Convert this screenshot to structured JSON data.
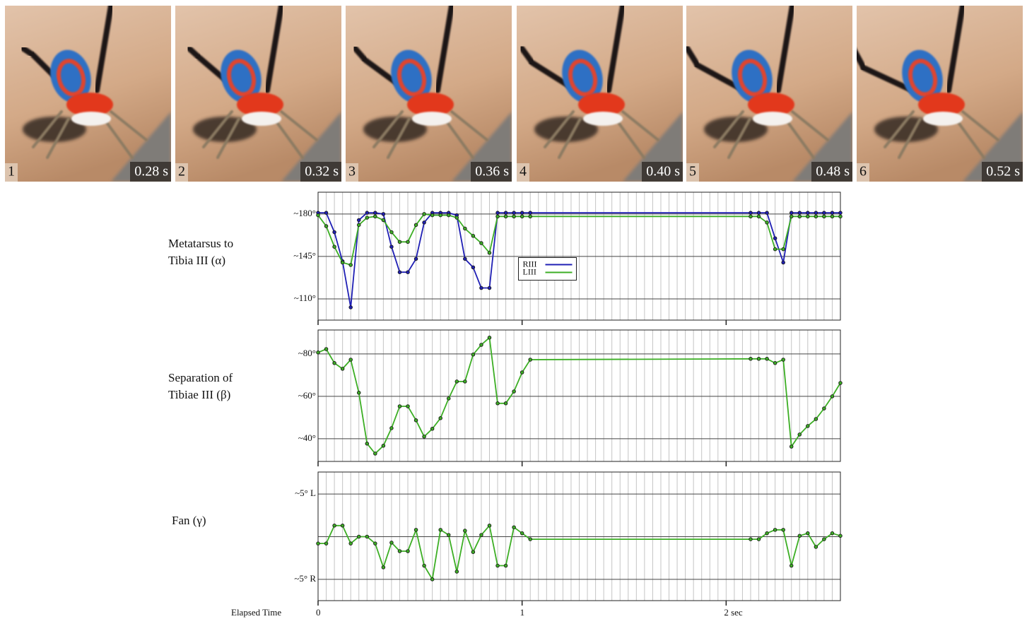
{
  "frames": [
    {
      "number": "1",
      "time": "0.28 s"
    },
    {
      "number": "2",
      "time": "0.32 s"
    },
    {
      "number": "3",
      "time": "0.36 s"
    },
    {
      "number": "4",
      "time": "0.40 s"
    },
    {
      "number": "5",
      "time": "0.48 s"
    },
    {
      "number": "6",
      "time": "0.52 s"
    }
  ],
  "chart_data": [
    {
      "type": "line",
      "title": [
        "Metatarsus to",
        "Tibia III (α)"
      ],
      "x": [
        0,
        0.04,
        0.08,
        0.12,
        0.16,
        0.2,
        0.24,
        0.28,
        0.32,
        0.36,
        0.4,
        0.44,
        0.48,
        0.52,
        0.56,
        0.6,
        0.64,
        0.68,
        0.72,
        0.76,
        0.8,
        0.84,
        0.88,
        0.92,
        0.96,
        1,
        1.04,
        2.12,
        2.16,
        2.2,
        2.24,
        2.28,
        2.32,
        2.36,
        2.4,
        2.44,
        2.48,
        2.52,
        2.56
      ],
      "xlim": [
        0,
        2.56
      ],
      "ylim": [
        92.5,
        198
      ],
      "yticks": [
        {
          "value": 180,
          "label": "~180°"
        },
        {
          "value": 145,
          "label": "~145°"
        },
        {
          "value": 110,
          "label": "~110°"
        }
      ],
      "minor_grid_step": 0.04,
      "legend": "center",
      "series": [
        {
          "name": "RIII",
          "color": "#1f1fb4",
          "values": [
            181,
            181,
            165,
            141,
            103,
            175,
            181,
            181,
            180,
            153,
            132,
            132,
            143,
            173,
            181,
            181,
            181,
            179,
            143,
            136,
            119,
            119,
            181,
            181,
            181,
            181,
            181,
            181,
            181,
            181,
            160,
            140,
            181,
            181,
            181,
            181,
            181,
            181,
            181
          ]
        },
        {
          "name": "LIII",
          "color": "#3cae24",
          "values": [
            179,
            170,
            153,
            140,
            138,
            171,
            177,
            178,
            175,
            165,
            157,
            157,
            171,
            180,
            179,
            179,
            179,
            177,
            168,
            162,
            156,
            148,
            178,
            178,
            178,
            178,
            178,
            178,
            178,
            173,
            151,
            151,
            178,
            178,
            178,
            178,
            178,
            178,
            178
          ]
        }
      ]
    },
    {
      "type": "line",
      "title": [
        "Separation of",
        "Tibiae III  (β)"
      ],
      "x": [
        0,
        0.04,
        0.08,
        0.12,
        0.16,
        0.2,
        0.24,
        0.28,
        0.32,
        0.36,
        0.4,
        0.44,
        0.48,
        0.52,
        0.56,
        0.6,
        0.64,
        0.68,
        0.72,
        0.76,
        0.8,
        0.84,
        0.88,
        0.92,
        0.96,
        1,
        1.04,
        2.12,
        2.16,
        2.2,
        2.24,
        2.28,
        2.32,
        2.36,
        2.4,
        2.44,
        2.48,
        2.52,
        2.56
      ],
      "xlim": [
        0,
        2.56
      ],
      "ylim": [
        29.3,
        91.3
      ],
      "yticks": [
        {
          "value": 80,
          "label": "~80°"
        },
        {
          "value": 60,
          "label": "~60°"
        },
        {
          "value": 40,
          "label": "~40°"
        }
      ],
      "minor_grid_step": 0.04,
      "series": [
        {
          "color": "#3cae24",
          "values": [
            80.7,
            82.3,
            75.7,
            73,
            77.3,
            61.7,
            37.7,
            33,
            36.7,
            45,
            55.3,
            55.3,
            48.7,
            41,
            44.7,
            49.7,
            59,
            67,
            67,
            79.7,
            84.3,
            87.7,
            56.7,
            56.7,
            62.3,
            71.3,
            77.3,
            77.7,
            77.7,
            77.7,
            75.7,
            77.3,
            36.3,
            42,
            46,
            49.3,
            54.3,
            60,
            66.3
          ]
        }
      ]
    },
    {
      "type": "line",
      "title": [
        "Fan (γ)"
      ],
      "x": [
        0,
        0.04,
        0.08,
        0.12,
        0.16,
        0.2,
        0.24,
        0.28,
        0.32,
        0.36,
        0.4,
        0.44,
        0.48,
        0.52,
        0.56,
        0.6,
        0.64,
        0.68,
        0.72,
        0.76,
        0.8,
        0.84,
        0.88,
        0.92,
        0.96,
        1,
        1.04,
        2.12,
        2.16,
        2.2,
        2.24,
        2.28,
        2.32,
        2.36,
        2.4,
        2.44,
        2.48,
        2.52,
        2.56
      ],
      "xlim": [
        0,
        2.56
      ],
      "ylim": [
        -7.5,
        7.58
      ],
      "yticks": [
        {
          "value": 5,
          "label": "~5° L"
        },
        {
          "value": -5,
          "label": "~5° R"
        }
      ],
      "zero_line": true,
      "minor_grid_step": 0.04,
      "xlabel": "Elapsed Time",
      "xticks": [
        0,
        1,
        {
          "value": 2,
          "label": "2 sec"
        }
      ],
      "series": [
        {
          "color": "#3cae24",
          "values": [
            -0.8,
            -0.8,
            1.3,
            1.3,
            -0.8,
            0,
            0,
            -0.8,
            -3.6,
            -0.7,
            -1.7,
            -1.7,
            0.8,
            -3.4,
            -5,
            0.8,
            0.2,
            -4.1,
            0.7,
            -1.8,
            0.2,
            1.3,
            -3.4,
            -3.4,
            1.1,
            0.4,
            -0.3,
            -0.3,
            -0.3,
            0.4,
            0.8,
            0.8,
            -3.4,
            0.1,
            0.4,
            -1.2,
            -0.3,
            0.4,
            0.1
          ]
        }
      ]
    }
  ]
}
